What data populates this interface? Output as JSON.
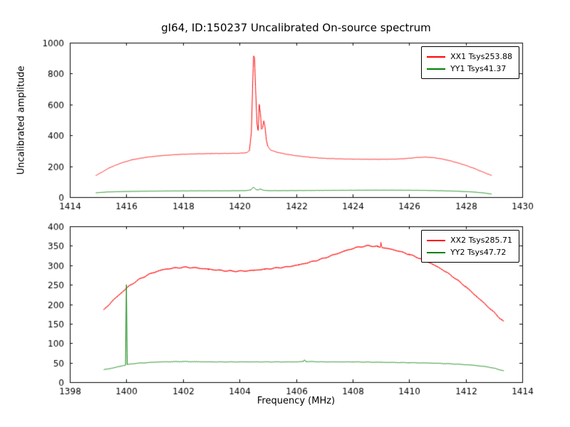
{
  "title": "gI64, ID:150237 Uncalibrated On-source spectrum",
  "ylabel": "Uncalibrated amplitude",
  "xlabel": "Frequency (MHz)",
  "colors": {
    "red": "#ff0000",
    "green": "#007f00",
    "axis": "#000000",
    "background": "#ffffff"
  },
  "chart_data": [
    {
      "type": "line",
      "title": "gI64, ID:150237 Uncalibrated On-source spectrum",
      "xlabel": "",
      "ylabel": "Uncalibrated amplitude",
      "xlim": [
        1414,
        1430
      ],
      "ylim": [
        0,
        1000
      ],
      "xticks": [
        1414,
        1416,
        1418,
        1420,
        1422,
        1424,
        1426,
        1428,
        1430
      ],
      "yticks": [
        0,
        200,
        400,
        600,
        800,
        1000
      ],
      "grid": false,
      "legend_position": "upper right",
      "series": [
        {
          "name": "XX1 Tsys253.88",
          "color": "#ff0000",
          "noise": 1.5,
          "points": [
            [
              1414.92,
              140
            ],
            [
              1415.1,
              158
            ],
            [
              1415.4,
              190
            ],
            [
              1415.8,
              220
            ],
            [
              1416.2,
              242
            ],
            [
              1416.7,
              258
            ],
            [
              1417.2,
              268
            ],
            [
              1417.8,
              276
            ],
            [
              1418.4,
              280
            ],
            [
              1419.0,
              282
            ],
            [
              1419.6,
              283
            ],
            [
              1420.0,
              284
            ],
            [
              1420.25,
              288
            ],
            [
              1420.35,
              300
            ],
            [
              1420.42,
              420
            ],
            [
              1420.47,
              760
            ],
            [
              1420.5,
              915
            ],
            [
              1420.53,
              905
            ],
            [
              1420.57,
              700
            ],
            [
              1420.62,
              470
            ],
            [
              1420.66,
              430
            ],
            [
              1420.7,
              600
            ],
            [
              1420.74,
              545
            ],
            [
              1420.78,
              440
            ],
            [
              1420.82,
              450
            ],
            [
              1420.86,
              495
            ],
            [
              1420.9,
              460
            ],
            [
              1420.95,
              370
            ],
            [
              1421.0,
              330
            ],
            [
              1421.1,
              305
            ],
            [
              1421.3,
              292
            ],
            [
              1421.6,
              280
            ],
            [
              1422.0,
              268
            ],
            [
              1422.5,
              258
            ],
            [
              1423.0,
              251
            ],
            [
              1423.5,
              248
            ],
            [
              1424.0,
              246
            ],
            [
              1424.5,
              245
            ],
            [
              1425.0,
              245
            ],
            [
              1425.5,
              246
            ],
            [
              1425.9,
              250
            ],
            [
              1426.3,
              257
            ],
            [
              1426.6,
              259
            ],
            [
              1426.9,
              255
            ],
            [
              1427.2,
              246
            ],
            [
              1427.5,
              233
            ],
            [
              1427.9,
              212
            ],
            [
              1428.3,
              186
            ],
            [
              1428.6,
              163
            ],
            [
              1428.92,
              140
            ]
          ]
        },
        {
          "name": "YY1 Tsys41.37",
          "color": "#007f00",
          "noise": 0.8,
          "points": [
            [
              1414.92,
              28
            ],
            [
              1415.3,
              33
            ],
            [
              1415.8,
              36
            ],
            [
              1416.5,
              38
            ],
            [
              1417.5,
              40
            ],
            [
              1418.5,
              41
            ],
            [
              1419.5,
              41
            ],
            [
              1420.2,
              42
            ],
            [
              1420.4,
              46
            ],
            [
              1420.46,
              60
            ],
            [
              1420.5,
              64
            ],
            [
              1420.54,
              56
            ],
            [
              1420.6,
              48
            ],
            [
              1420.66,
              46
            ],
            [
              1420.72,
              52
            ],
            [
              1420.78,
              50
            ],
            [
              1420.85,
              44
            ],
            [
              1421.0,
              42
            ],
            [
              1421.5,
              42
            ],
            [
              1422.5,
              43
            ],
            [
              1423.5,
              44
            ],
            [
              1424.5,
              45
            ],
            [
              1425.5,
              45
            ],
            [
              1426.3,
              44
            ],
            [
              1427.0,
              42
            ],
            [
              1427.6,
              39
            ],
            [
              1428.2,
              34
            ],
            [
              1428.6,
              28
            ],
            [
              1428.92,
              20
            ]
          ]
        }
      ]
    },
    {
      "type": "line",
      "title": "",
      "xlabel": "Frequency (MHz)",
      "ylabel": "",
      "xlim": [
        1398,
        1414
      ],
      "ylim": [
        0,
        400
      ],
      "xticks": [
        1398,
        1400,
        1402,
        1404,
        1406,
        1408,
        1410,
        1412,
        1414
      ],
      "yticks": [
        0,
        50,
        100,
        150,
        200,
        250,
        300,
        350,
        400
      ],
      "grid": false,
      "legend_position": "upper right",
      "series": [
        {
          "name": "XX2 Tsys285.71",
          "color": "#ff0000",
          "noise": 2.5,
          "points": [
            [
              1399.2,
              185
            ],
            [
              1399.5,
              208
            ],
            [
              1399.8,
              228
            ],
            [
              1400.1,
              247
            ],
            [
              1400.5,
              266
            ],
            [
              1400.9,
              280
            ],
            [
              1401.3,
              289
            ],
            [
              1401.7,
              293
            ],
            [
              1402.1,
              295
            ],
            [
              1402.5,
              293
            ],
            [
              1402.9,
              290
            ],
            [
              1403.3,
              287
            ],
            [
              1403.7,
              285
            ],
            [
              1404.1,
              285
            ],
            [
              1404.5,
              287
            ],
            [
              1404.9,
              290
            ],
            [
              1405.3,
              293
            ],
            [
              1405.7,
              296
            ],
            [
              1406.1,
              301
            ],
            [
              1406.5,
              308
            ],
            [
              1406.9,
              316
            ],
            [
              1407.3,
              326
            ],
            [
              1407.7,
              336
            ],
            [
              1408.0,
              343
            ],
            [
              1408.3,
              348
            ],
            [
              1408.6,
              350
            ],
            [
              1408.9,
              348
            ],
            [
              1408.98,
              345
            ],
            [
              1409.0,
              357
            ],
            [
              1409.04,
              346
            ],
            [
              1409.3,
              342
            ],
            [
              1409.6,
              337
            ],
            [
              1410.0,
              328
            ],
            [
              1410.4,
              317
            ],
            [
              1410.8,
              304
            ],
            [
              1411.2,
              288
            ],
            [
              1411.6,
              268
            ],
            [
              1412.0,
              245
            ],
            [
              1412.4,
              219
            ],
            [
              1412.8,
              193
            ],
            [
              1413.1,
              172
            ],
            [
              1413.35,
              155
            ]
          ]
        },
        {
          "name": "YY2 Tsys47.72",
          "color": "#007f00",
          "noise": 0.8,
          "points": [
            [
              1399.2,
              32
            ],
            [
              1399.5,
              36
            ],
            [
              1399.8,
              41
            ],
            [
              1399.97,
              44
            ],
            [
              1400.0,
              250
            ],
            [
              1400.03,
              45
            ],
            [
              1400.3,
              48
            ],
            [
              1400.7,
              50
            ],
            [
              1401.2,
              52
            ],
            [
              1402.0,
              53
            ],
            [
              1403.0,
              52
            ],
            [
              1404.0,
              52
            ],
            [
              1405.0,
              52
            ],
            [
              1406.0,
              52
            ],
            [
              1406.25,
              53
            ],
            [
              1406.3,
              57
            ],
            [
              1406.35,
              53
            ],
            [
              1407.0,
              52
            ],
            [
              1408.0,
              52
            ],
            [
              1409.0,
              51
            ],
            [
              1410.0,
              50
            ],
            [
              1410.8,
              49
            ],
            [
              1411.5,
              47
            ],
            [
              1412.2,
              44
            ],
            [
              1412.8,
              39
            ],
            [
              1413.1,
              34
            ],
            [
              1413.35,
              29
            ]
          ]
        }
      ]
    }
  ]
}
